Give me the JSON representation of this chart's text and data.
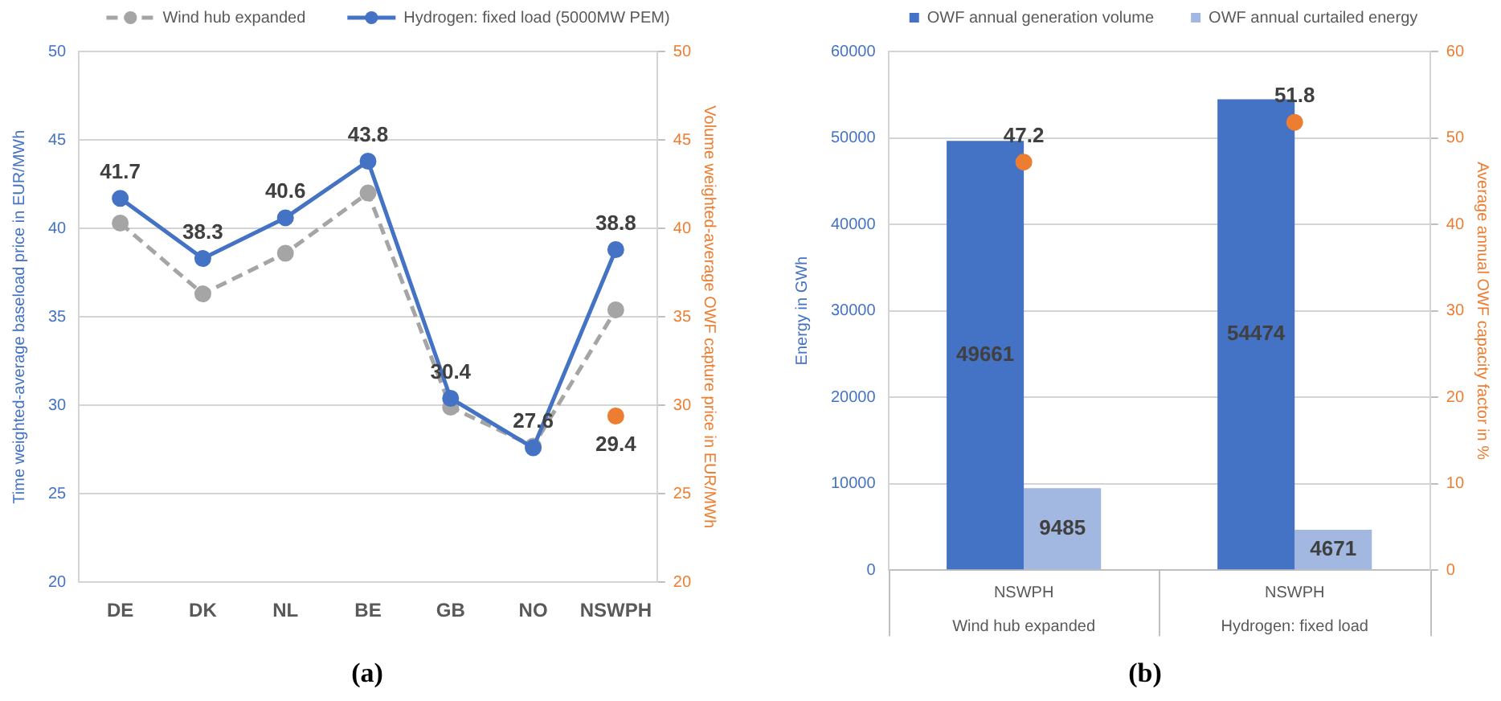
{
  "chart_data": [
    {
      "type": "line",
      "title": "(a)",
      "ylabel": "Time weighted-average baseload price in EUR/MWh",
      "y2label": "Volume weighted-average OWF capture price in EUR/MWh",
      "categories": [
        "DE",
        "DK",
        "NL",
        "BE",
        "GB",
        "NO",
        "NSWPH"
      ],
      "series": [
        {
          "name": "Wind hub expanded",
          "color": "#a5a5a5",
          "line_style": "dashed",
          "values": [
            40.3,
            36.3,
            38.6,
            42.0,
            29.9,
            27.7,
            35.4
          ]
        },
        {
          "name": "Hydrogen: fixed load (5000MW PEM)",
          "color": "#4472c4",
          "line_style": "solid",
          "values": [
            41.7,
            38.3,
            40.6,
            43.8,
            30.4,
            27.6,
            38.8
          ],
          "value_labels": [
            "41.7",
            "38.3",
            "40.6",
            "43.8",
            "30.4",
            "27.6",
            "38.8"
          ]
        },
        {
          "type": "scatter",
          "axis": "y2",
          "color": "#ed7d31",
          "x": [
            "NSWPH"
          ],
          "values": [
            29.4
          ],
          "value_labels": [
            "29.4"
          ]
        }
      ],
      "ylim": [
        20,
        50
      ],
      "yticks": [
        20,
        25,
        30,
        35,
        40,
        45,
        50
      ],
      "y2lim": [
        20,
        50
      ],
      "y2ticks": [
        20,
        25,
        30,
        35,
        40,
        45,
        50
      ],
      "grid": "y",
      "legend": "top",
      "marker": "circle"
    },
    {
      "type": "bar",
      "title": "(b)",
      "ylabel": "Energy in GWh",
      "y2label": "Average annual OWF capacity factor in %",
      "categories": [
        "NSWPH\nWind hub expanded",
        "NSWPH\nHydrogen: fixed load"
      ],
      "series": [
        {
          "name": "OWF annual generation volume",
          "color": "#4472c4",
          "values": [
            49661,
            54474
          ]
        },
        {
          "name": "OWF annual curtailed energy",
          "color": "#a2b8e1",
          "values": [
            9485,
            4671
          ]
        },
        {
          "type": "scatter",
          "axis": "y2",
          "color": "#ed7d31",
          "values": [
            47.2,
            51.8
          ]
        }
      ],
      "ylim": [
        0,
        60000
      ],
      "yticks": [
        0,
        10000,
        20000,
        30000,
        40000,
        50000,
        60000
      ],
      "y2lim": [
        0,
        60
      ],
      "y2ticks": [
        0,
        10,
        20,
        30,
        40,
        50,
        60
      ],
      "grid": "y",
      "legend": "top",
      "marker": "circle",
      "data_labels": true
    }
  ]
}
